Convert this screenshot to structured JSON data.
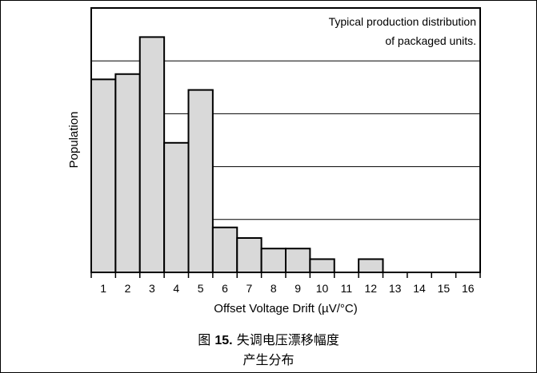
{
  "chart_data": {
    "type": "bar",
    "categories": [
      "1",
      "2",
      "3",
      "4",
      "5",
      "6",
      "7",
      "8",
      "9",
      "10",
      "11",
      "12",
      "13",
      "14",
      "15",
      "16"
    ],
    "values": [
      73,
      75,
      89,
      49,
      69,
      17,
      13,
      9,
      9,
      5,
      0,
      5,
      0,
      0,
      0,
      0
    ],
    "ylim": [
      0,
      100
    ],
    "xlabel": "Offset Voltage Drift (µV/°C)",
    "ylabel": "Population",
    "annotation": [
      "Typical production distribution",
      "of packaged units."
    ],
    "grid": "horizontal",
    "bar_fill": "#d9d9d9",
    "bar_stroke": "#000000"
  },
  "caption": {
    "prefix": "图 ",
    "number": "15.",
    "title": " 失调电压漂移幅度",
    "line2": "产生分布"
  }
}
